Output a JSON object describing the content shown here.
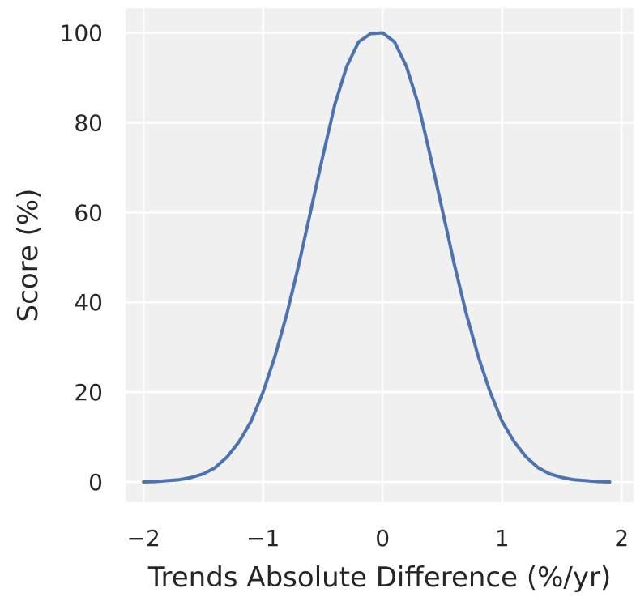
{
  "colors": {
    "plot_background": "#f0f0f0",
    "grid": "#ffffff",
    "series": "#4c72b0",
    "text": "#262626"
  },
  "chart_data": {
    "type": "line",
    "title": "",
    "xlabel": "Trends Absolute Difference (%/yr)",
    "ylabel": "Score (%)",
    "xlim": [
      -2.15,
      2.1
    ],
    "ylim": [
      -4.5,
      105.5
    ],
    "grid": true,
    "x_ticks": [
      -2,
      -1,
      0,
      1,
      2
    ],
    "x_tick_labels": [
      "−2",
      "−1",
      "0",
      "1",
      "2"
    ],
    "y_ticks": [
      0,
      20,
      40,
      60,
      80,
      100
    ],
    "y_tick_labels": [
      "0",
      "20",
      "40",
      "60",
      "80",
      "100"
    ],
    "series": [
      {
        "color": "#4c72b0",
        "x": [
          -2.0,
          -1.9,
          -1.8,
          -1.7,
          -1.6,
          -1.5,
          -1.4,
          -1.3,
          -1.2,
          -1.1,
          -1.0,
          -0.9,
          -0.8,
          -0.7,
          -0.6,
          -0.5,
          -0.4,
          -0.3,
          -0.2,
          -0.1,
          0.0,
          0.1,
          0.2,
          0.3,
          0.4,
          0.5,
          0.6,
          0.7,
          0.8,
          0.9,
          1.0,
          1.1,
          1.2,
          1.3,
          1.4,
          1.5,
          1.6,
          1.7,
          1.8,
          1.9
        ],
        "y": [
          0.0,
          0.1,
          0.3,
          0.5,
          1.0,
          1.8,
          3.2,
          5.6,
          9.0,
          13.5,
          20.0,
          28.0,
          37.5,
          48.5,
          60.5,
          72.5,
          84.0,
          92.5,
          98.0,
          99.8,
          100.0,
          98.0,
          92.5,
          84.0,
          72.5,
          60.5,
          48.5,
          37.5,
          28.0,
          20.0,
          13.5,
          9.0,
          5.6,
          3.2,
          1.8,
          1.0,
          0.5,
          0.3,
          0.1,
          0.0
        ]
      }
    ]
  }
}
